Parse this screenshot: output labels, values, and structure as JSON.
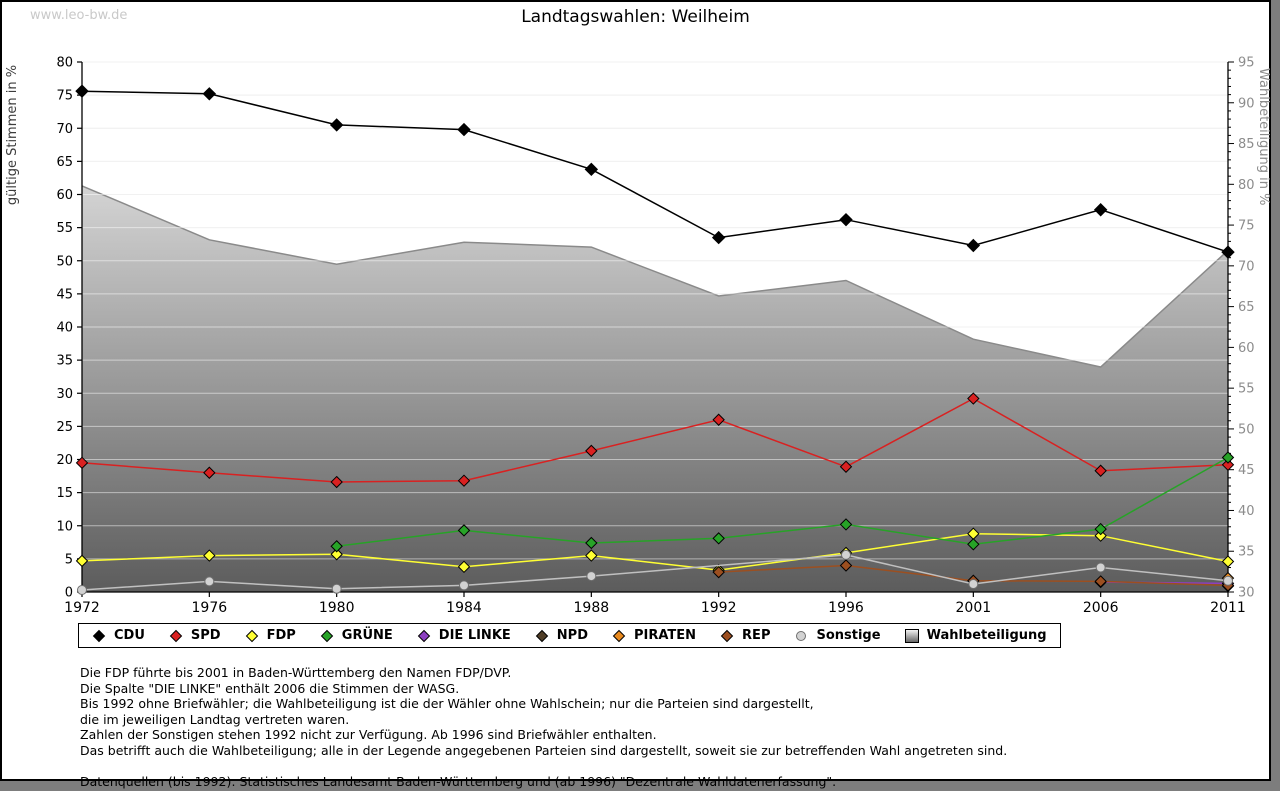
{
  "page": {
    "watermark": "www.leo-bw.de",
    "title": "Landtagswahlen: Weilheim"
  },
  "chart_data": {
    "type": "line",
    "title": "Landtagswahlen: Weilheim",
    "categories": [
      1972,
      1976,
      1980,
      1984,
      1988,
      1992,
      1996,
      2001,
      2006,
      2011
    ],
    "left_axis": {
      "label": "gültige Stimmen in %",
      "min": 0,
      "max": 80,
      "tick_step": 5
    },
    "right_axis": {
      "label": "Wahlbeteiligung in %",
      "min": 30,
      "max": 95,
      "tick_step": 5,
      "minor_step": 1
    },
    "grid": true,
    "legend_position": "bottom",
    "series": [
      {
        "name": "CDU",
        "axis": "left",
        "marker": "diamond",
        "color": "#000000",
        "values": [
          75.6,
          75.2,
          70.5,
          69.8,
          63.8,
          53.5,
          56.2,
          52.3,
          57.7,
          51.3
        ]
      },
      {
        "name": "SPD",
        "axis": "left",
        "marker": "diamond",
        "color": "#d92121",
        "values": [
          19.5,
          18.0,
          16.6,
          16.8,
          21.3,
          26.0,
          18.9,
          29.2,
          18.3,
          19.2
        ]
      },
      {
        "name": "FDP",
        "axis": "left",
        "marker": "diamond",
        "color": "#ffff33",
        "values": [
          4.7,
          5.5,
          5.7,
          3.8,
          5.5,
          3.3,
          5.9,
          8.8,
          8.5,
          4.6
        ]
      },
      {
        "name": "GRÜNE",
        "axis": "left",
        "marker": "diamond",
        "color": "#27a327",
        "values": [
          null,
          null,
          6.9,
          9.3,
          7.4,
          8.1,
          10.2,
          7.2,
          9.5,
          20.3
        ]
      },
      {
        "name": "DIE LINKE",
        "axis": "left",
        "marker": "diamond",
        "color": "#8c3fc0",
        "values": [
          null,
          null,
          null,
          null,
          null,
          null,
          null,
          null,
          1.5,
          1.3
        ]
      },
      {
        "name": "NPD",
        "axis": "left",
        "marker": "diamond",
        "color": "#4f3d26",
        "values": [
          null,
          null,
          null,
          null,
          null,
          null,
          null,
          null,
          null,
          0.9
        ]
      },
      {
        "name": "PIRATEN",
        "axis": "left",
        "marker": "diamond",
        "color": "#e8891e",
        "values": [
          null,
          null,
          null,
          null,
          null,
          null,
          null,
          null,
          null,
          2.1
        ]
      },
      {
        "name": "REP",
        "axis": "left",
        "marker": "diamond",
        "color": "#9c4f20",
        "values": [
          null,
          null,
          null,
          null,
          null,
          3.0,
          4.0,
          1.7,
          1.6,
          1.0
        ]
      },
      {
        "name": "Sonstige",
        "axis": "left",
        "marker": "circle",
        "color": "#d2d2d2",
        "values": [
          0.3,
          1.6,
          0.5,
          1.0,
          2.4,
          null,
          5.6,
          1.2,
          3.7,
          1.7
        ]
      },
      {
        "name": "Wahlbeteiligung",
        "axis": "right",
        "marker": "square",
        "type": "area",
        "color": "#8a8a8a",
        "fill_top": "#f8f8f8",
        "fill_bottom": "#5c5c5c",
        "values": [
          79.8,
          73.2,
          70.2,
          72.9,
          72.3,
          66.3,
          68.2,
          61.0,
          57.6,
          71.9
        ]
      }
    ]
  },
  "footnotes": {
    "lines": [
      "Die FDP führte bis 2001 in Baden-Württemberg den Namen FDP/DVP.",
      "Die Spalte \"DIE LINKE\" enthält 2006 die Stimmen der WASG.",
      "Bis 1992 ohne Briefwähler; die Wahlbeteiligung ist die der Wähler ohne Wahlschein; nur die Parteien sind dargestellt,",
      "die im jeweiligen Landtag vertreten waren.",
      "Zahlen der Sonstigen stehen 1992 nicht zur Verfügung. Ab 1996 sind Briefwähler enthalten.",
      "Das betrifft auch die Wahlbeteiligung; alle in der Legende angegebenen Parteien sind dargestellt, soweit sie zur betreffenden Wahl angetreten sind.",
      "",
      "Datenquellen (bis 1992): Statistisches Landesamt Baden-Württemberg und (ab 1996) \"Dezentrale Wahldatenerfassung\"."
    ]
  }
}
